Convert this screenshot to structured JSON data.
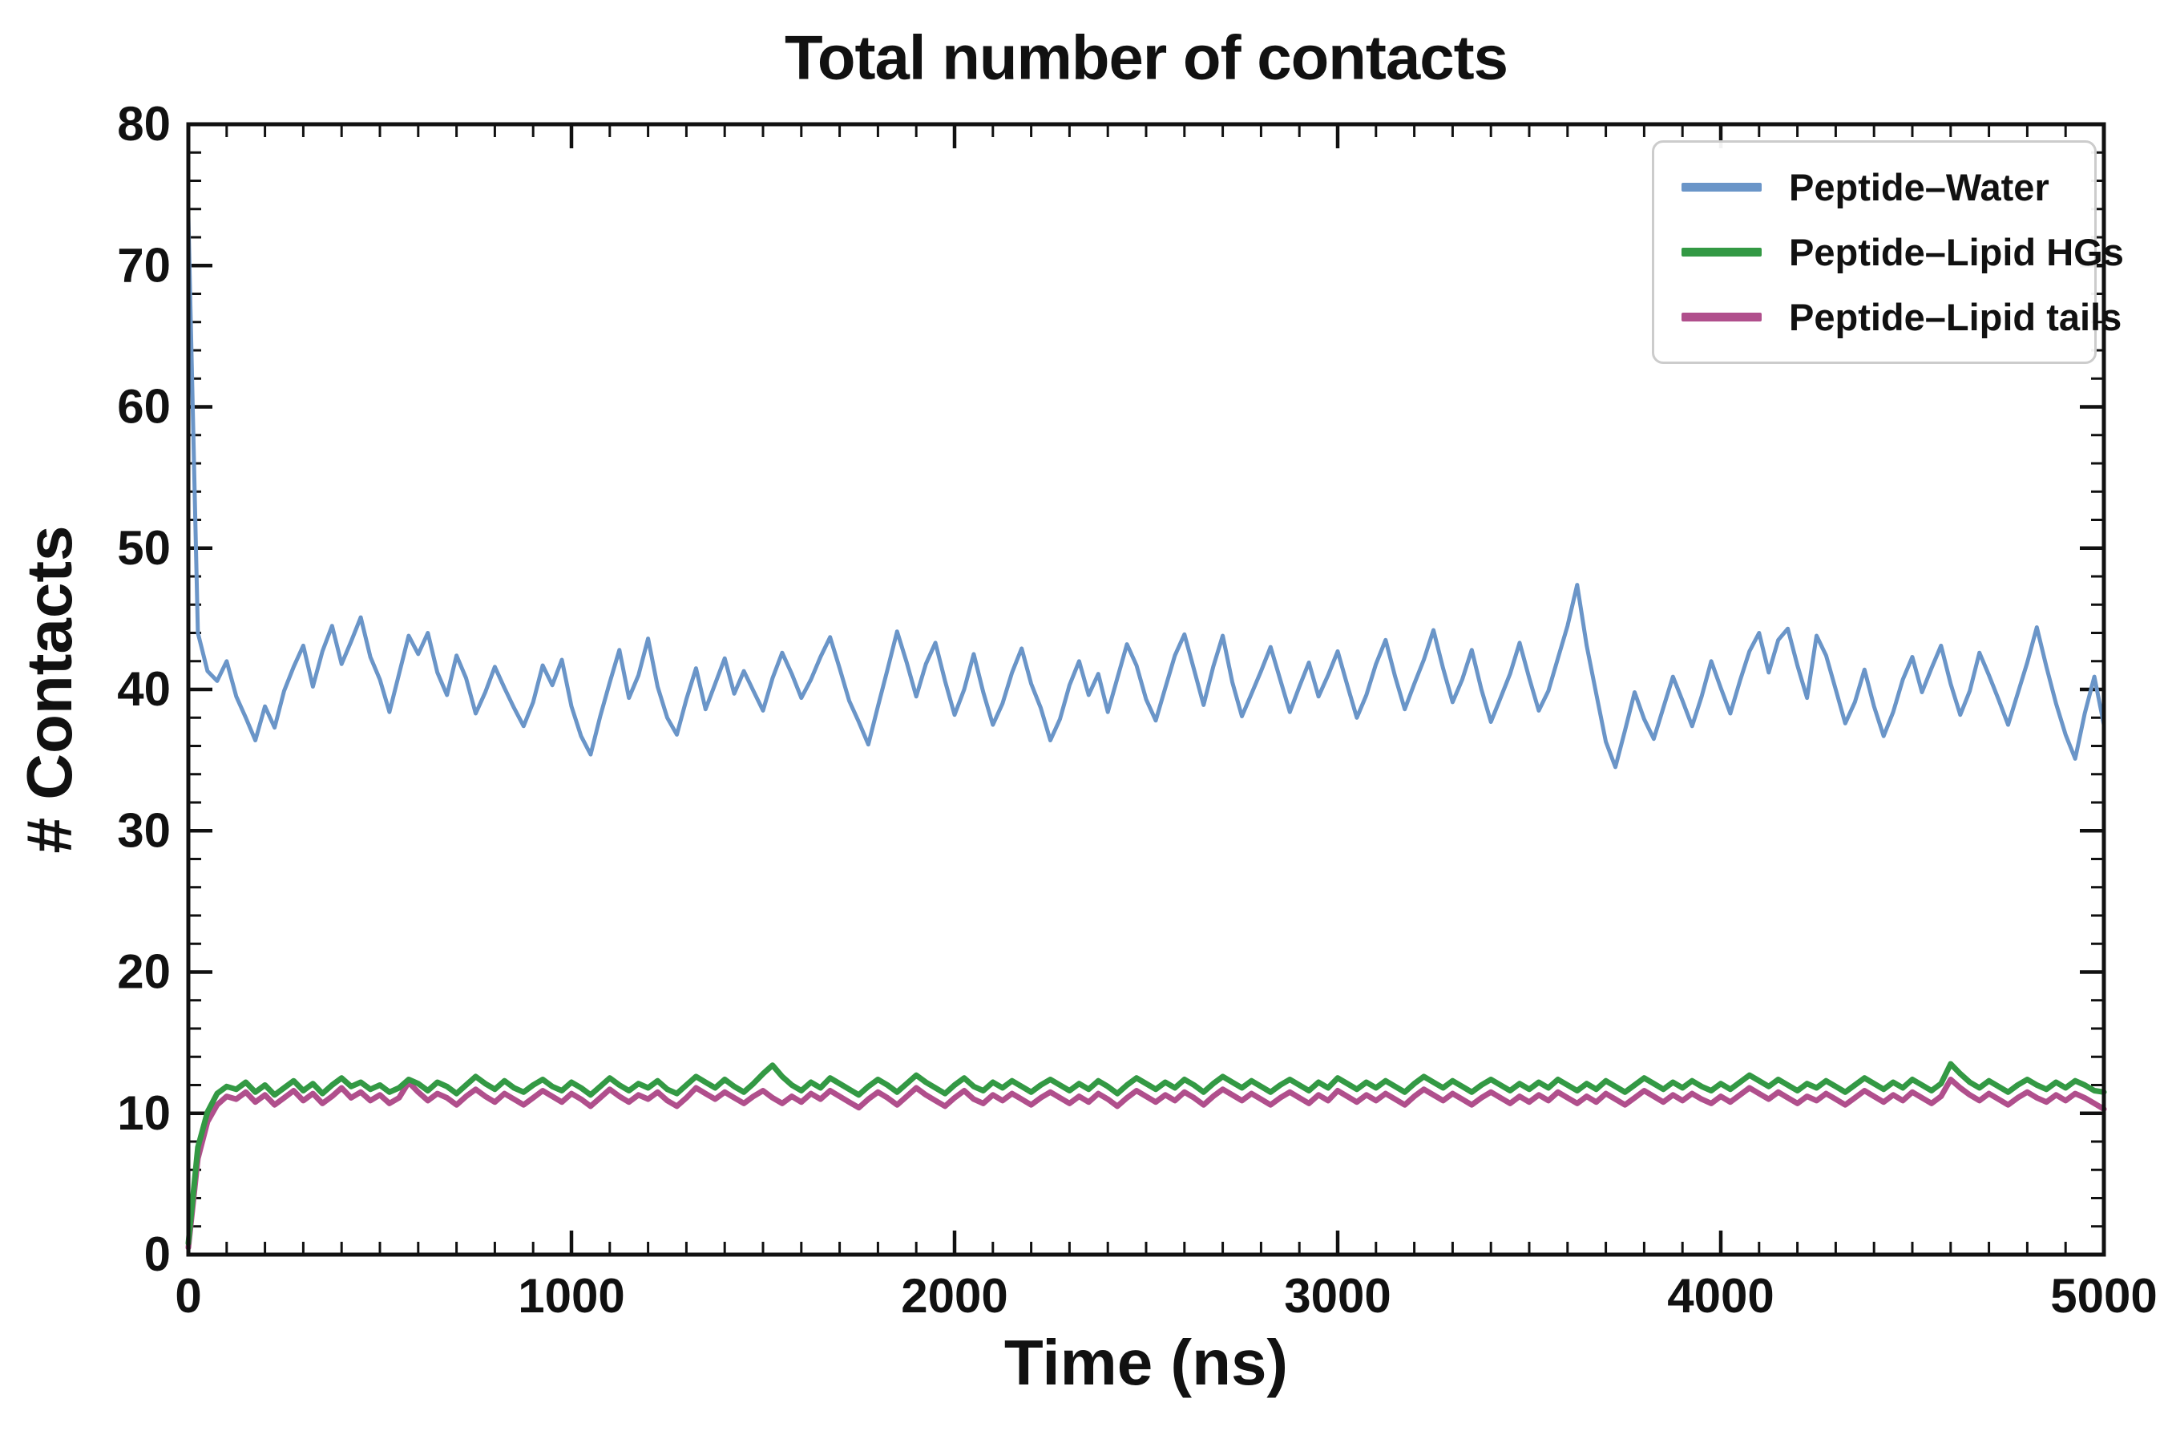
{
  "chart_data": {
    "type": "line",
    "title": "Total number of contacts",
    "xlabel": "Time (ns)",
    "ylabel": "# Contacts",
    "xlim": [
      0,
      5000
    ],
    "ylim": [
      0,
      80
    ],
    "x_ticks": [
      0,
      1000,
      2000,
      3000,
      4000,
      5000
    ],
    "x_tick_labels": [
      "0",
      "1000",
      "2000",
      "3000",
      "4000",
      "5000"
    ],
    "y_ticks": [
      0,
      10,
      20,
      30,
      40,
      50,
      60,
      70,
      80
    ],
    "y_tick_labels": [
      "0",
      "10",
      "20",
      "30",
      "40",
      "50",
      "60",
      "70",
      "80"
    ],
    "x_minor_step": 100,
    "y_minor_step": 2,
    "grid": false,
    "legend_position": "upper right",
    "series": [
      {
        "name": "Peptide–Water",
        "color": "#6a95c8",
        "line_width": 5,
        "values": [
          73.5,
          44.0,
          41.3,
          40.6,
          42.0,
          39.5,
          38.0,
          36.4,
          38.8,
          37.3,
          39.9,
          41.6,
          43.1,
          40.2,
          42.7,
          44.5,
          41.8,
          43.4,
          45.1,
          42.3,
          40.7,
          38.4,
          41.1,
          43.8,
          42.5,
          44.0,
          41.2,
          39.6,
          42.4,
          40.8,
          38.3,
          39.8,
          41.6,
          40.1,
          38.7,
          37.4,
          39.1,
          41.7,
          40.3,
          42.1,
          38.8,
          36.7,
          35.4,
          38.1,
          40.5,
          42.8,
          39.4,
          41.0,
          43.6,
          40.2,
          38.0,
          36.8,
          39.3,
          41.5,
          38.6,
          40.4,
          42.2,
          39.7,
          41.3,
          39.9,
          38.5,
          40.8,
          42.6,
          41.1,
          39.4,
          40.7,
          42.3,
          43.7,
          41.5,
          39.2,
          37.7,
          36.1,
          38.8,
          41.4,
          44.1,
          41.9,
          39.5,
          41.8,
          43.3,
          40.6,
          38.2,
          40.0,
          42.5,
          39.8,
          37.5,
          39.0,
          41.2,
          42.9,
          40.4,
          38.7,
          36.4,
          37.9,
          40.3,
          42.0,
          39.6,
          41.1,
          38.4,
          40.8,
          43.2,
          41.7,
          39.3,
          37.8,
          40.1,
          42.4,
          43.9,
          41.4,
          38.9,
          41.6,
          43.8,
          40.5,
          38.1,
          39.7,
          41.3,
          43.0,
          40.7,
          38.4,
          40.2,
          41.9,
          39.5,
          41.0,
          42.7,
          40.3,
          38.0,
          39.6,
          41.8,
          43.5,
          40.9,
          38.6,
          40.4,
          42.1,
          44.2,
          41.5,
          39.1,
          40.7,
          42.8,
          40.0,
          37.7,
          39.4,
          41.1,
          43.3,
          40.8,
          38.5,
          39.9,
          42.2,
          44.5,
          47.4,
          43.1,
          39.7,
          36.3,
          34.5,
          37.1,
          39.8,
          37.9,
          36.5,
          38.7,
          40.9,
          39.2,
          37.4,
          39.5,
          42.0,
          40.1,
          38.3,
          40.6,
          42.7,
          44.0,
          41.2,
          43.5,
          44.3,
          41.7,
          39.4,
          43.8,
          42.4,
          40.0,
          37.6,
          39.1,
          41.4,
          38.8,
          36.7,
          38.4,
          40.7,
          42.3,
          39.8,
          41.5,
          43.1,
          40.4,
          38.2,
          39.9,
          42.6,
          41.0,
          39.3,
          37.5,
          39.7,
          41.9,
          44.4,
          41.6,
          39.0,
          36.8,
          35.1,
          38.3,
          40.9,
          37.5
        ]
      },
      {
        "name": "Peptide–Lipid HGs",
        "color": "#339944",
        "line_width": 7,
        "values": [
          0.8,
          7.6,
          10.1,
          11.4,
          11.9,
          11.7,
          12.2,
          11.5,
          12.0,
          11.3,
          11.8,
          12.3,
          11.6,
          12.1,
          11.4,
          12.0,
          12.5,
          11.9,
          12.2,
          11.7,
          12.0,
          11.5,
          11.8,
          12.4,
          12.1,
          11.6,
          12.2,
          11.9,
          11.4,
          12.0,
          12.6,
          12.1,
          11.7,
          12.3,
          11.8,
          11.5,
          12.0,
          12.4,
          11.9,
          11.6,
          12.2,
          11.8,
          11.3,
          11.9,
          12.5,
          12.0,
          11.6,
          12.1,
          11.8,
          12.3,
          11.7,
          11.4,
          12.0,
          12.6,
          12.2,
          11.8,
          12.4,
          11.9,
          11.5,
          12.1,
          12.8,
          13.4,
          12.6,
          12.0,
          11.6,
          12.2,
          11.8,
          12.5,
          12.1,
          11.7,
          11.3,
          11.9,
          12.4,
          12.0,
          11.5,
          12.1,
          12.7,
          12.2,
          11.8,
          11.4,
          12.0,
          12.5,
          11.9,
          11.6,
          12.2,
          11.8,
          12.3,
          11.9,
          11.5,
          12.0,
          12.4,
          12.0,
          11.6,
          12.1,
          11.7,
          12.3,
          11.9,
          11.4,
          12.0,
          12.5,
          12.1,
          11.7,
          12.2,
          11.8,
          12.4,
          12.0,
          11.5,
          12.1,
          12.6,
          12.2,
          11.8,
          12.3,
          11.9,
          11.5,
          12.0,
          12.4,
          12.0,
          11.6,
          12.2,
          11.8,
          12.5,
          12.1,
          11.7,
          12.2,
          11.8,
          12.3,
          11.9,
          11.5,
          12.1,
          12.6,
          12.2,
          11.8,
          12.3,
          11.9,
          11.5,
          12.0,
          12.4,
          12.0,
          11.6,
          12.1,
          11.7,
          12.2,
          11.8,
          12.4,
          12.0,
          11.6,
          12.1,
          11.7,
          12.3,
          11.9,
          11.5,
          12.0,
          12.5,
          12.1,
          11.7,
          12.2,
          11.8,
          12.3,
          11.9,
          11.6,
          12.1,
          11.7,
          12.2,
          12.7,
          12.3,
          11.9,
          12.4,
          12.0,
          11.6,
          12.1,
          11.8,
          12.3,
          11.9,
          11.5,
          12.0,
          12.5,
          12.1,
          11.7,
          12.2,
          11.8,
          12.4,
          12.0,
          11.6,
          12.1,
          13.5,
          12.8,
          12.2,
          11.8,
          12.3,
          11.9,
          11.5,
          12.0,
          12.4,
          12.0,
          11.7,
          12.2,
          11.8,
          12.3,
          12.0,
          11.6,
          11.5
        ]
      },
      {
        "name": "Peptide–Lipid tails",
        "color": "#b04f8c",
        "line_width": 7,
        "values": [
          0.5,
          6.8,
          9.4,
          10.6,
          11.2,
          11.0,
          11.5,
          10.8,
          11.3,
          10.6,
          11.1,
          11.6,
          10.9,
          11.4,
          10.7,
          11.2,
          11.8,
          11.1,
          11.5,
          10.9,
          11.3,
          10.7,
          11.1,
          12.2,
          11.5,
          10.9,
          11.4,
          11.1,
          10.6,
          11.2,
          11.7,
          11.2,
          10.8,
          11.4,
          11.0,
          10.6,
          11.1,
          11.6,
          11.2,
          10.8,
          11.4,
          11.0,
          10.5,
          11.1,
          11.7,
          11.2,
          10.8,
          11.3,
          11.0,
          11.5,
          10.9,
          10.5,
          11.1,
          11.8,
          11.4,
          11.0,
          11.5,
          11.1,
          10.7,
          11.2,
          11.6,
          11.1,
          10.7,
          11.2,
          10.8,
          11.4,
          11.0,
          11.6,
          11.2,
          10.8,
          10.4,
          11.0,
          11.5,
          11.1,
          10.6,
          11.2,
          11.8,
          11.3,
          10.9,
          10.5,
          11.1,
          11.6,
          11.0,
          10.7,
          11.3,
          10.9,
          11.4,
          11.0,
          10.6,
          11.1,
          11.5,
          11.1,
          10.7,
          11.2,
          10.8,
          11.4,
          11.0,
          10.5,
          11.1,
          11.6,
          11.2,
          10.8,
          11.3,
          10.9,
          11.5,
          11.1,
          10.6,
          11.2,
          11.7,
          11.3,
          10.9,
          11.4,
          11.0,
          10.6,
          11.1,
          11.5,
          11.1,
          10.7,
          11.3,
          10.9,
          11.6,
          11.2,
          10.8,
          11.3,
          10.9,
          11.4,
          11.0,
          10.6,
          11.2,
          11.7,
          11.3,
          10.9,
          11.4,
          11.0,
          10.6,
          11.1,
          11.5,
          11.1,
          10.7,
          11.2,
          10.8,
          11.3,
          10.9,
          11.5,
          11.1,
          10.7,
          11.2,
          10.8,
          11.4,
          11.0,
          10.6,
          11.1,
          11.6,
          11.2,
          10.8,
          11.3,
          10.9,
          11.4,
          11.0,
          10.7,
          11.2,
          10.8,
          11.3,
          11.8,
          11.4,
          11.0,
          11.5,
          11.1,
          10.7,
          11.2,
          10.9,
          11.4,
          11.0,
          10.6,
          11.1,
          11.6,
          11.2,
          10.8,
          11.3,
          10.9,
          11.5,
          11.1,
          10.7,
          11.2,
          12.4,
          11.8,
          11.3,
          10.9,
          11.4,
          11.0,
          10.6,
          11.1,
          11.5,
          11.1,
          10.8,
          11.3,
          10.9,
          11.4,
          11.1,
          10.7,
          10.3
        ]
      }
    ]
  },
  "colors": {
    "axis": "#111111",
    "legend_border": "#cccccc",
    "background": "#ffffff"
  }
}
